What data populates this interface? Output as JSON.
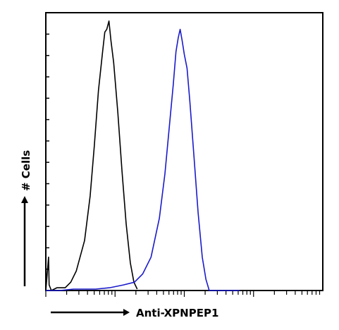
{
  "chart_data": {
    "type": "line",
    "title": "",
    "xlabel": "Anti-XPNPEP1",
    "ylabel": "# Cells",
    "x_scale": "log",
    "xlim": [
      0,
      1
    ],
    "ylim": [
      0,
      1
    ],
    "series": [
      {
        "color": "#000000",
        "points": [
          [
            0.0,
            0.0
          ],
          [
            0.01,
            0.12
          ],
          [
            0.012,
            0.02
          ],
          [
            0.02,
            0.0
          ],
          [
            0.04,
            0.01
          ],
          [
            0.07,
            0.01
          ],
          [
            0.09,
            0.03
          ],
          [
            0.11,
            0.07
          ],
          [
            0.14,
            0.18
          ],
          [
            0.16,
            0.34
          ],
          [
            0.175,
            0.52
          ],
          [
            0.19,
            0.72
          ],
          [
            0.205,
            0.86
          ],
          [
            0.213,
            0.93
          ],
          [
            0.22,
            0.94
          ],
          [
            0.228,
            0.97
          ],
          [
            0.235,
            0.9
          ],
          [
            0.245,
            0.82
          ],
          [
            0.26,
            0.64
          ],
          [
            0.275,
            0.43
          ],
          [
            0.29,
            0.24
          ],
          [
            0.305,
            0.1
          ],
          [
            0.318,
            0.03
          ],
          [
            0.33,
            0.005
          ]
        ]
      },
      {
        "color": "#1a1acc",
        "points": [
          [
            0.0,
            0.0
          ],
          [
            0.05,
            0.0
          ],
          [
            0.1,
            0.005
          ],
          [
            0.18,
            0.005
          ],
          [
            0.23,
            0.01
          ],
          [
            0.28,
            0.02
          ],
          [
            0.32,
            0.03
          ],
          [
            0.35,
            0.06
          ],
          [
            0.38,
            0.12
          ],
          [
            0.41,
            0.26
          ],
          [
            0.43,
            0.42
          ],
          [
            0.445,
            0.58
          ],
          [
            0.46,
            0.74
          ],
          [
            0.47,
            0.86
          ],
          [
            0.478,
            0.91
          ],
          [
            0.485,
            0.94
          ],
          [
            0.492,
            0.9
          ],
          [
            0.5,
            0.85
          ],
          [
            0.51,
            0.8
          ],
          [
            0.52,
            0.68
          ],
          [
            0.535,
            0.48
          ],
          [
            0.55,
            0.28
          ],
          [
            0.565,
            0.12
          ],
          [
            0.578,
            0.04
          ],
          [
            0.59,
            0.0
          ],
          [
            0.7,
            0.0
          ]
        ]
      }
    ],
    "grid": false,
    "legend": "none"
  }
}
